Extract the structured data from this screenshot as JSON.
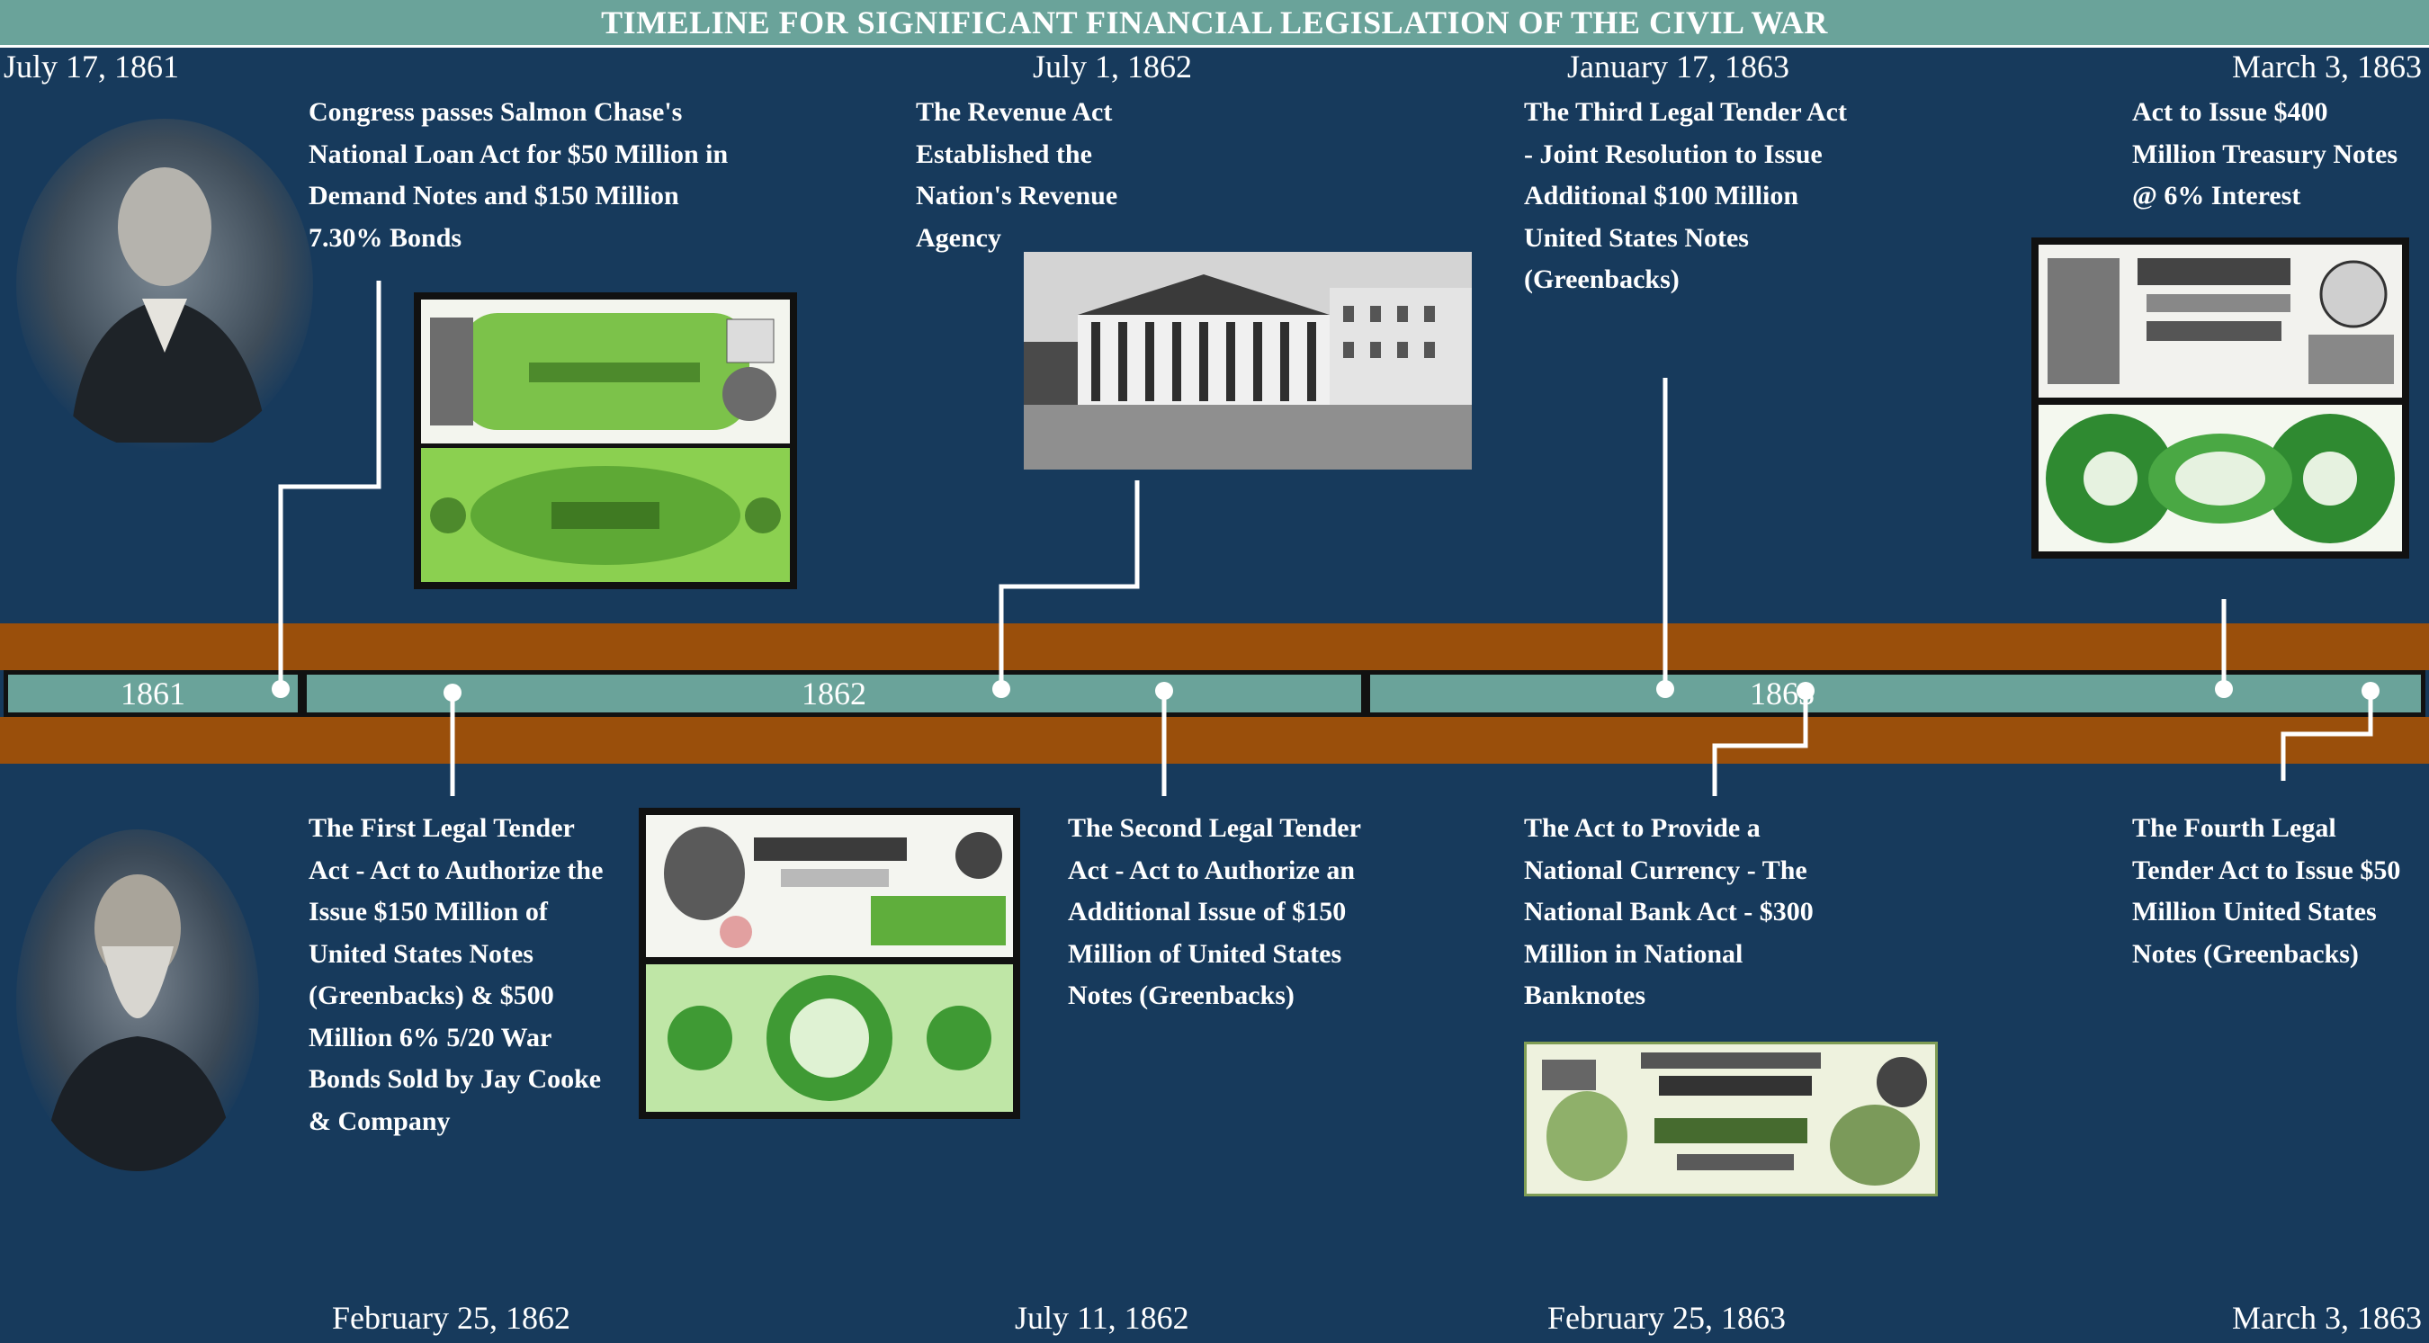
{
  "title": "TIMELINE FOR SIGNIFICANT FINANCIAL LEGISLATION OF THE CIVIL WAR",
  "timeline": {
    "years": [
      "1861",
      "1862",
      "1863"
    ]
  },
  "top_dates": [
    "July 17, 1861",
    "July 1, 1862",
    "January 17, 1863",
    "March 3, 1863"
  ],
  "bottom_dates": [
    "February 25, 1862",
    "July 11, 1862",
    "February 25, 1863",
    "March 3, 1863"
  ],
  "events_top": [
    "Congress passes Salmon Chase's National Loan Act for $50 Million in Demand Notes and $150 Million 7.30% Bonds",
    "The Revenue Act Established the Nation's Revenue Agency",
    "The Third Legal Tender Act - Joint Resolution to Issue Additional $100 Million United States Notes (Greenbacks)",
    "Act to Issue $400 Million Treasury Notes @ 6% Interest"
  ],
  "events_bottom": [
    "The First Legal Tender Act - Act to Authorize the Issue $150 Million of United States Notes (Greenbacks) & $500 Million 6% 5/20 War Bonds Sold by Jay Cooke & Company",
    "The Second  Legal Tender Act - Act to Authorize an Additional Issue of $150 Million of United States Notes (Greenbacks)",
    "The Act to Provide a National Currency - The National Bank Act - $300 Million in National Banknotes",
    "The Fourth Legal Tender Act to Issue $50 Million United States Notes (Greenbacks)"
  ],
  "colors": {
    "background": "#173a5c",
    "timeline_bar": "#6aa39a",
    "band": "#9a4f0b",
    "connector": "#ffffff"
  }
}
